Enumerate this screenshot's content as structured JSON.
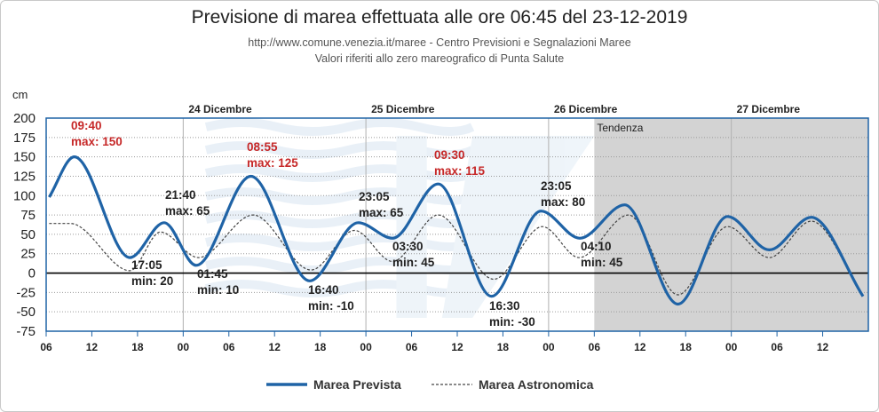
{
  "header": {
    "title": "Previsione di marea effettuata alle ore 06:45 del 23-12-2019",
    "source": "http://www.comune.venezia.it/maree - Centro Previsioni e Segnalazioni Maree",
    "note": "Valori riferiti allo zero mareografico di Punta Salute"
  },
  "chart_data": {
    "type": "line",
    "ylabel": "cm",
    "ylim": [
      -75,
      200
    ],
    "yticks": [
      200,
      175,
      150,
      125,
      100,
      75,
      50,
      25,
      0,
      -25,
      -50,
      -75
    ],
    "x_unit": "hours from 23-12-2019 06:00",
    "xlim": [
      0,
      108
    ],
    "xticks": [
      {
        "h": 0,
        "label": "06"
      },
      {
        "h": 6,
        "label": "12"
      },
      {
        "h": 12,
        "label": "18"
      },
      {
        "h": 18,
        "label": "00"
      },
      {
        "h": 24,
        "label": "06"
      },
      {
        "h": 30,
        "label": "12"
      },
      {
        "h": 36,
        "label": "18"
      },
      {
        "h": 42,
        "label": "00"
      },
      {
        "h": 48,
        "label": "06"
      },
      {
        "h": 54,
        "label": "12"
      },
      {
        "h": 60,
        "label": "18"
      },
      {
        "h": 66,
        "label": "00"
      },
      {
        "h": 72,
        "label": "06"
      },
      {
        "h": 78,
        "label": "12"
      },
      {
        "h": 84,
        "label": "18"
      },
      {
        "h": 90,
        "label": "00"
      },
      {
        "h": 96,
        "label": "06"
      },
      {
        "h": 102,
        "label": "12"
      }
    ],
    "days": [
      {
        "h": 18,
        "label": "24 Dicembre"
      },
      {
        "h": 42,
        "label": "25 Dicembre"
      },
      {
        "h": 66,
        "label": "26 Dicembre"
      },
      {
        "h": 90,
        "label": "27 Dicembre"
      }
    ],
    "trend": {
      "start": 72,
      "label": "Tendenza",
      "color": "#d3d3d3"
    },
    "grid": true,
    "legend_position": "bottom",
    "series": [
      {
        "name": "Marea Prevista",
        "color": "#1f63a6",
        "points": [
          [
            0.4,
            98
          ],
          [
            3.7,
            150
          ],
          [
            11.0,
            20
          ],
          [
            15.5,
            65
          ],
          [
            19.7,
            10
          ],
          [
            26.9,
            125
          ],
          [
            34.6,
            -10
          ],
          [
            41.0,
            65
          ],
          [
            45.5,
            45
          ],
          [
            51.5,
            115
          ],
          [
            58.5,
            -30
          ],
          [
            65.0,
            80
          ],
          [
            70.1,
            45
          ],
          [
            76.0,
            88
          ],
          [
            83.0,
            -40
          ],
          [
            89.5,
            73
          ],
          [
            95.0,
            30
          ],
          [
            100.5,
            72
          ],
          [
            107.3,
            -30
          ]
        ]
      },
      {
        "name": "Marea Astronomica",
        "color": "#444444",
        "points": [
          [
            0.4,
            64
          ],
          [
            3.2,
            64
          ],
          [
            11.0,
            3
          ],
          [
            15.0,
            53
          ],
          [
            20.0,
            20
          ],
          [
            27.2,
            75
          ],
          [
            34.8,
            4
          ],
          [
            40.5,
            55
          ],
          [
            45.5,
            15
          ],
          [
            51.5,
            75
          ],
          [
            58.8,
            -8
          ],
          [
            65.2,
            60
          ],
          [
            70.0,
            20
          ],
          [
            76.5,
            75
          ],
          [
            83.0,
            -28
          ],
          [
            89.5,
            60
          ],
          [
            95.0,
            20
          ],
          [
            100.5,
            67
          ],
          [
            107.3,
            -30
          ]
        ]
      }
    ],
    "annotations": [
      {
        "time": "09:40",
        "label": "max: 150",
        "color": "#c62828"
      },
      {
        "time": "17:05",
        "label": "min: 20",
        "color": "#222222"
      },
      {
        "time": "21:40",
        "label": "max: 65",
        "color": "#222222"
      },
      {
        "time": "01:45",
        "label": "min: 10",
        "color": "#222222"
      },
      {
        "time": "08:55",
        "label": "max: 125",
        "color": "#c62828"
      },
      {
        "time": "16:40",
        "label": "min: -10",
        "color": "#222222"
      },
      {
        "time": "23:05",
        "label": "max: 65",
        "color": "#222222"
      },
      {
        "time": "03:30",
        "label": "min: 45",
        "color": "#222222"
      },
      {
        "time": "09:30",
        "label": "max: 115",
        "color": "#c62828"
      },
      {
        "time": "16:30",
        "label": "min: -30",
        "color": "#222222"
      },
      {
        "time": "23:05",
        "label": "max: 80",
        "color": "#222222"
      },
      {
        "time": "04:10",
        "label": "min: 45",
        "color": "#222222"
      }
    ]
  }
}
